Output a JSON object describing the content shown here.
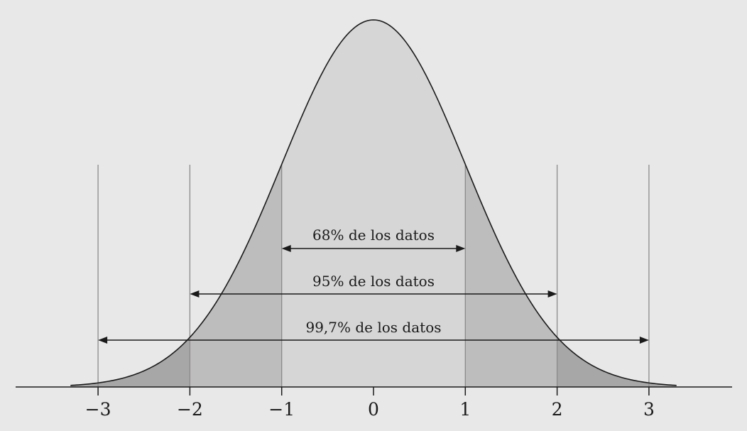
{
  "chart_data": {
    "type": "area",
    "distribution": "normal",
    "mean": 0,
    "sd": 1,
    "x_range": [
      -3.3,
      3.3
    ],
    "tick_labels": [
      "−3",
      "−2",
      "−1",
      "0",
      "1",
      "2",
      "3"
    ],
    "ticks": [
      -3,
      -2,
      -1,
      0,
      1,
      2,
      3
    ],
    "intervals": [
      {
        "from": -1,
        "to": 1,
        "label": "68% de los datos"
      },
      {
        "from": -2,
        "to": 2,
        "label": "95% de los datos"
      },
      {
        "from": -3,
        "to": 3,
        "label": "99,7% de los datos"
      }
    ],
    "colors": {
      "background": "#e8e8e8",
      "within_1sd": "#d6d6d6",
      "within_2sd": "#bebdbd",
      "beyond_2sd": "#a8a7a7",
      "curve": "#1a1a1a",
      "guide_lines": "#8a8a8a"
    }
  }
}
